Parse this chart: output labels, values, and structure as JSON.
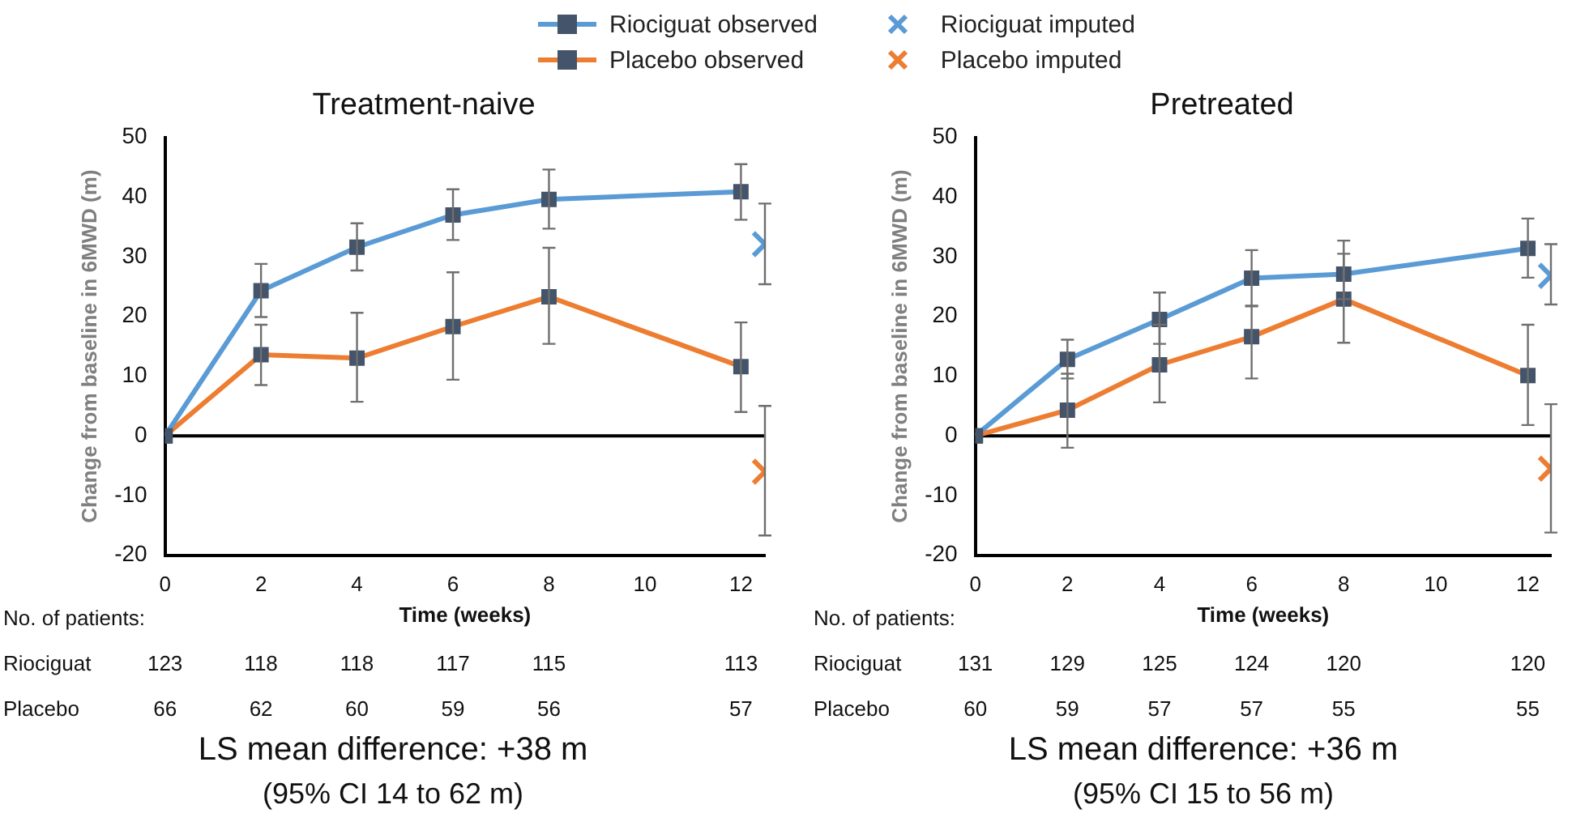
{
  "chart_data": [
    {
      "type": "line",
      "title": "Treatment-naive",
      "xlabel": "Time (weeks)",
      "ylabel": "Change from baseline in 6MWD (m)",
      "legend": "top",
      "grid": false,
      "xlim": [
        0,
        12.5
      ],
      "xticks": [
        0,
        2,
        4,
        6,
        8,
        10,
        12
      ],
      "ylim": [
        -20,
        50
      ],
      "yticks": [
        -20,
        -10,
        0,
        10,
        20,
        30,
        40,
        50
      ],
      "ref_lines": [
        {
          "axis": "y",
          "value": 0,
          "color": "#000000"
        }
      ],
      "annotations": [
        "No. of patients:",
        "Riociguat 123 118 118 117 115 113",
        "Placebo 66 62 60 59 56 57",
        "LS mean difference: +38 m",
        "(95% CI 14 to 62 m)"
      ],
      "series": [
        {
          "name": "Riociguat observed",
          "type": "line",
          "marker": "square",
          "color": "#5b9bd5",
          "x": [
            0,
            2,
            4,
            6,
            8,
            12
          ],
          "values": [
            0,
            24.3,
            31.6,
            37.0,
            39.6,
            40.9
          ],
          "errors": [
            null,
            [
              19.9,
              28.8
            ],
            [
              27.7,
              35.6
            ],
            [
              32.8,
              41.3
            ],
            [
              34.7,
              44.6
            ],
            [
              36.2,
              45.5
            ]
          ]
        },
        {
          "name": "Placebo observed",
          "type": "line",
          "marker": "square",
          "color": "#ed7d31",
          "x": [
            0,
            2,
            4,
            6,
            8,
            12
          ],
          "values": [
            0,
            13.6,
            13.0,
            18.3,
            23.3,
            11.6
          ],
          "errors": [
            null,
            [
              8.5,
              18.6
            ],
            [
              5.7,
              20.6
            ],
            [
              9.4,
              27.4
            ],
            [
              15.4,
              31.5
            ],
            [
              4.0,
              19.0
            ]
          ]
        },
        {
          "name": "Riociguat imputed",
          "type": "scatter",
          "marker": "cross",
          "color": "#5b9bd5",
          "x": [
            12.5
          ],
          "values": [
            32.1
          ],
          "errors": [
            [
              25.4,
              38.9
            ]
          ]
        },
        {
          "name": "Placebo imputed",
          "type": "scatter",
          "marker": "cross",
          "color": "#ed7d31",
          "x": [
            12.5
          ],
          "values": [
            -6.0
          ],
          "errors": [
            [
              -16.7,
              5.0
            ]
          ]
        }
      ]
    },
    {
      "type": "line",
      "title": "Pretreated",
      "xlabel": "Time (weeks)",
      "ylabel": "Change from baseline in 6MWD (m)",
      "grid": false,
      "xlim": [
        0,
        12.5
      ],
      "xticks": [
        0,
        2,
        4,
        6,
        8,
        10,
        12
      ],
      "ylim": [
        -20,
        50
      ],
      "yticks": [
        -20,
        -10,
        0,
        10,
        20,
        30,
        40,
        50
      ],
      "ref_lines": [
        {
          "axis": "y",
          "value": 0,
          "color": "#000000"
        }
      ],
      "annotations": [
        "No. of patients:",
        "Riociguat 131 129 125 124 120 120",
        "Placebo 60 59 57 57 55 55",
        "LS mean difference: +36 m",
        "(95% CI 15 to 56 m)"
      ],
      "series": [
        {
          "type": "line",
          "marker": "square",
          "color": "#5b9bd5",
          "x": [
            0,
            2,
            4,
            6,
            8,
            12
          ],
          "values": [
            0,
            12.8,
            19.5,
            26.4,
            27.1,
            31.4
          ],
          "errors": [
            null,
            [
              9.6,
              16.1
            ],
            [
              15.4,
              24.0
            ],
            [
              21.8,
              31.1
            ],
            [
              22.9,
              32.7
            ],
            [
              26.5,
              36.4
            ]
          ]
        },
        {
          "type": "line",
          "marker": "square",
          "color": "#ed7d31",
          "x": [
            0,
            2,
            4,
            6,
            8,
            12
          ],
          "values": [
            0,
            4.3,
            11.9,
            16.6,
            22.9,
            10.1
          ],
          "errors": [
            null,
            [
              -2.0,
              10.4
            ],
            [
              5.6,
              18.6
            ],
            [
              9.6,
              21.7
            ],
            [
              15.6,
              30.5
            ],
            [
              1.8,
              18.6
            ]
          ]
        },
        {
          "type": "scatter",
          "marker": "cross",
          "color": "#5b9bd5",
          "x": [
            12.5
          ],
          "values": [
            26.8
          ],
          "errors": [
            [
              22.0,
              32.1
            ]
          ]
        },
        {
          "type": "scatter",
          "marker": "cross",
          "color": "#ed7d31",
          "x": [
            12.5
          ],
          "values": [
            -5.5
          ],
          "errors": [
            [
              -16.2,
              5.3
            ]
          ]
        }
      ]
    }
  ]
}
